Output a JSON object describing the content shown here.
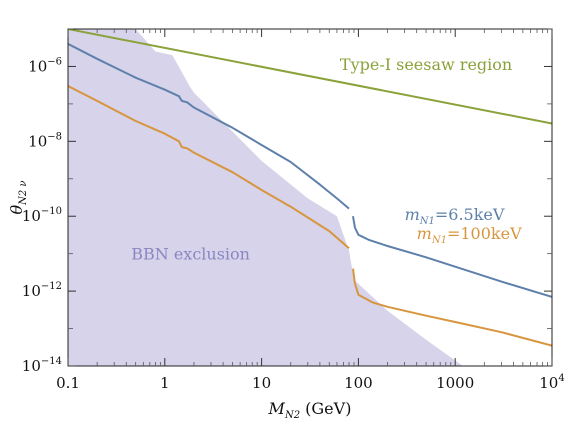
{
  "chart_data": {
    "type": "line",
    "x_scale": "log",
    "y_scale": "log",
    "xlim": [
      0.1,
      10000
    ],
    "ylim": [
      1e-14,
      1e-05
    ],
    "x_ticks": [
      {
        "value": 0.1,
        "base": "0.1",
        "exp": ""
      },
      {
        "value": 1,
        "base": "1",
        "exp": ""
      },
      {
        "value": 10,
        "base": "10",
        "exp": ""
      },
      {
        "value": 100,
        "base": "100",
        "exp": ""
      },
      {
        "value": 1000,
        "base": "1000",
        "exp": ""
      },
      {
        "value": 10000,
        "base": "10",
        "exp": "4"
      }
    ],
    "y_ticks": [
      {
        "value": 1e-06,
        "base": "10",
        "exp": "−6"
      },
      {
        "value": 1e-08,
        "base": "10",
        "exp": "−8"
      },
      {
        "value": 1e-10,
        "base": "10",
        "exp": "−10"
      },
      {
        "value": 1e-12,
        "base": "10",
        "exp": "−12"
      },
      {
        "value": 1e-14,
        "base": "10",
        "exp": "−14"
      }
    ],
    "xlabel": {
      "main": "M",
      "sub": "N2",
      "unit": " (GeV)"
    },
    "ylabel": {
      "main": "θ",
      "sub": "N2 ν"
    },
    "regions": [
      {
        "name": "BBN exclusion",
        "color": "#d6d3ea",
        "label_color": "#8a86c2",
        "label_at": [
          0.45,
          7e-12
        ],
        "boundary": [
          [
            0.1,
            1e-05
          ],
          [
            0.5,
            1e-05
          ],
          [
            0.8,
            2.5e-06
          ],
          [
            1.2,
            2e-06
          ],
          [
            1.8,
            3e-07
          ],
          [
            2.0,
            2e-07
          ],
          [
            10,
            3e-09
          ],
          [
            30,
            3e-10
          ],
          [
            60,
            1e-10
          ],
          [
            80,
            1.2e-11
          ],
          [
            90,
            2e-12
          ],
          [
            140,
            7e-13
          ],
          [
            200,
            3e-13
          ],
          [
            500,
            5e-14
          ],
          [
            1200,
            1e-14
          ]
        ]
      }
    ],
    "series": [
      {
        "color": "#8aa23a",
        "label": "Type-I seesaw region",
        "label_at": [
          500,
          8e-07
        ],
        "points": [
          [
            0.1,
            1e-05
          ],
          [
            10000,
            3e-08
          ]
        ]
      },
      {
        "color": "#5e80ab",
        "label_main": "m",
        "label_sub": "N1",
        "label_value": "=6.5keV",
        "label_at": [
          300,
          8e-11
        ],
        "points": [
          [
            0.1,
            4e-06
          ],
          [
            0.2,
            1.6e-06
          ],
          [
            0.5,
            5e-07
          ],
          [
            1.0,
            2.4e-07
          ],
          [
            1.4,
            1.6e-07
          ],
          [
            1.5,
            1.2e-07
          ],
          [
            1.7,
            1.1e-07
          ],
          [
            2.0,
            8e-08
          ],
          [
            5,
            2.3e-08
          ],
          [
            10,
            8e-09
          ],
          [
            20,
            2.8e-09
          ],
          [
            40,
            7e-10
          ],
          [
            60,
            3e-10
          ],
          [
            80,
            1.6e-10
          ]
        ],
        "points2": [
          [
            88,
            1e-10
          ],
          [
            92,
            5e-11
          ],
          [
            100,
            3.2e-11
          ],
          [
            130,
            2.3e-11
          ],
          [
            200,
            1.6e-11
          ],
          [
            500,
            8e-12
          ],
          [
            1000,
            4.5e-12
          ],
          [
            3000,
            1.8e-12
          ],
          [
            10000,
            7e-13
          ]
        ]
      },
      {
        "color": "#d7963e",
        "label_main": "m",
        "label_sub": "N1",
        "label_value": "=100keV",
        "label_at": [
          400,
          2.5e-11
        ],
        "points": [
          [
            0.1,
            3e-07
          ],
          [
            0.2,
            1.2e-07
          ],
          [
            0.5,
            3.5e-08
          ],
          [
            1.0,
            1.6e-08
          ],
          [
            1.4,
            1e-08
          ],
          [
            1.5,
            7e-09
          ],
          [
            1.7,
            6.5e-09
          ],
          [
            2.0,
            5e-09
          ],
          [
            5,
            1.5e-09
          ],
          [
            10,
            5e-10
          ],
          [
            20,
            1.8e-10
          ],
          [
            50,
            4e-11
          ],
          [
            80,
            1.4e-11
          ]
        ],
        "points2": [
          [
            88,
            4e-12
          ],
          [
            92,
            1.6e-12
          ],
          [
            100,
            8e-13
          ],
          [
            140,
            5e-13
          ],
          [
            200,
            3.8e-13
          ],
          [
            500,
            2.2e-13
          ],
          [
            1000,
            1.5e-13
          ],
          [
            3000,
            8e-14
          ],
          [
            10000,
            3.5e-14
          ]
        ]
      }
    ]
  }
}
